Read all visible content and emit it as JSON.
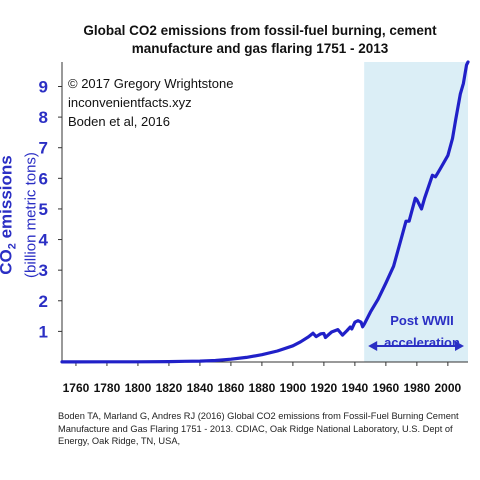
{
  "chart_data": {
    "type": "line",
    "title": "Global CO2 emissions from fossil-fuel burning, cement manufacture and gas flaring 1751 - 2013",
    "ylabel_main": "CO",
    "ylabel_sub_script": "2",
    "ylabel_main_rest": " emissions",
    "ylabel_units": "(billion metric tons)",
    "xlabel": "",
    "xlim": [
      1751,
      2013
    ],
    "ylim": [
      0,
      9.8
    ],
    "x_ticks": [
      1760,
      1780,
      1800,
      1820,
      1840,
      1860,
      1880,
      1900,
      1920,
      1940,
      1960,
      1980,
      2000
    ],
    "y_ticks": [
      1,
      2,
      3,
      4,
      5,
      6,
      7,
      8,
      9
    ],
    "grid": false,
    "series": [
      {
        "color": "#2020c8",
        "x": [
          1751,
          1760,
          1780,
          1800,
          1820,
          1830,
          1840,
          1850,
          1860,
          1870,
          1880,
          1890,
          1900,
          1905,
          1910,
          1913,
          1915,
          1918,
          1920,
          1921,
          1925,
          1929,
          1930,
          1932,
          1935,
          1937,
          1938,
          1940,
          1942,
          1944,
          1945,
          1946,
          1950,
          1955,
          1960,
          1965,
          1970,
          1973,
          1975,
          1979,
          1980,
          1983,
          1985,
          1990,
          1992,
          1995,
          2000,
          2003,
          2005,
          2008,
          2010,
          2012,
          2013
        ],
        "y": [
          0.003,
          0.003,
          0.005,
          0.008,
          0.014,
          0.022,
          0.03,
          0.05,
          0.09,
          0.15,
          0.24,
          0.36,
          0.53,
          0.66,
          0.82,
          0.94,
          0.83,
          0.92,
          0.93,
          0.8,
          0.98,
          1.06,
          1.0,
          0.88,
          1.03,
          1.14,
          1.08,
          1.3,
          1.35,
          1.3,
          1.15,
          1.23,
          1.63,
          2.05,
          2.58,
          3.13,
          4.05,
          4.6,
          4.6,
          5.35,
          5.3,
          5.0,
          5.35,
          6.1,
          6.05,
          6.3,
          6.75,
          7.3,
          7.9,
          8.75,
          9.1,
          9.7,
          9.8
        ]
      }
    ],
    "highlight_region": {
      "x": [
        1946,
        2013
      ],
      "color": "#dbeef6",
      "label": "Post WWII acceleration"
    }
  },
  "credits": [
    "© 2017 Gregory Wrightstone",
    "inconvenientfacts.xyz",
    "Boden et al, 2016"
  ],
  "annotation": {
    "line1": "Post WWII",
    "line2": "acceleration"
  },
  "source_text": "Boden TA, Marland G, Andres RJ (2016) Global CO2 emissions from Fossil-Fuel Burning Cement Manufacture and Gas Flaring 1751 - 2013. CDIAC, Oak Ridge National Laboratory, U.S. Dept of Energy, Oak Ridge, TN, USA,"
}
